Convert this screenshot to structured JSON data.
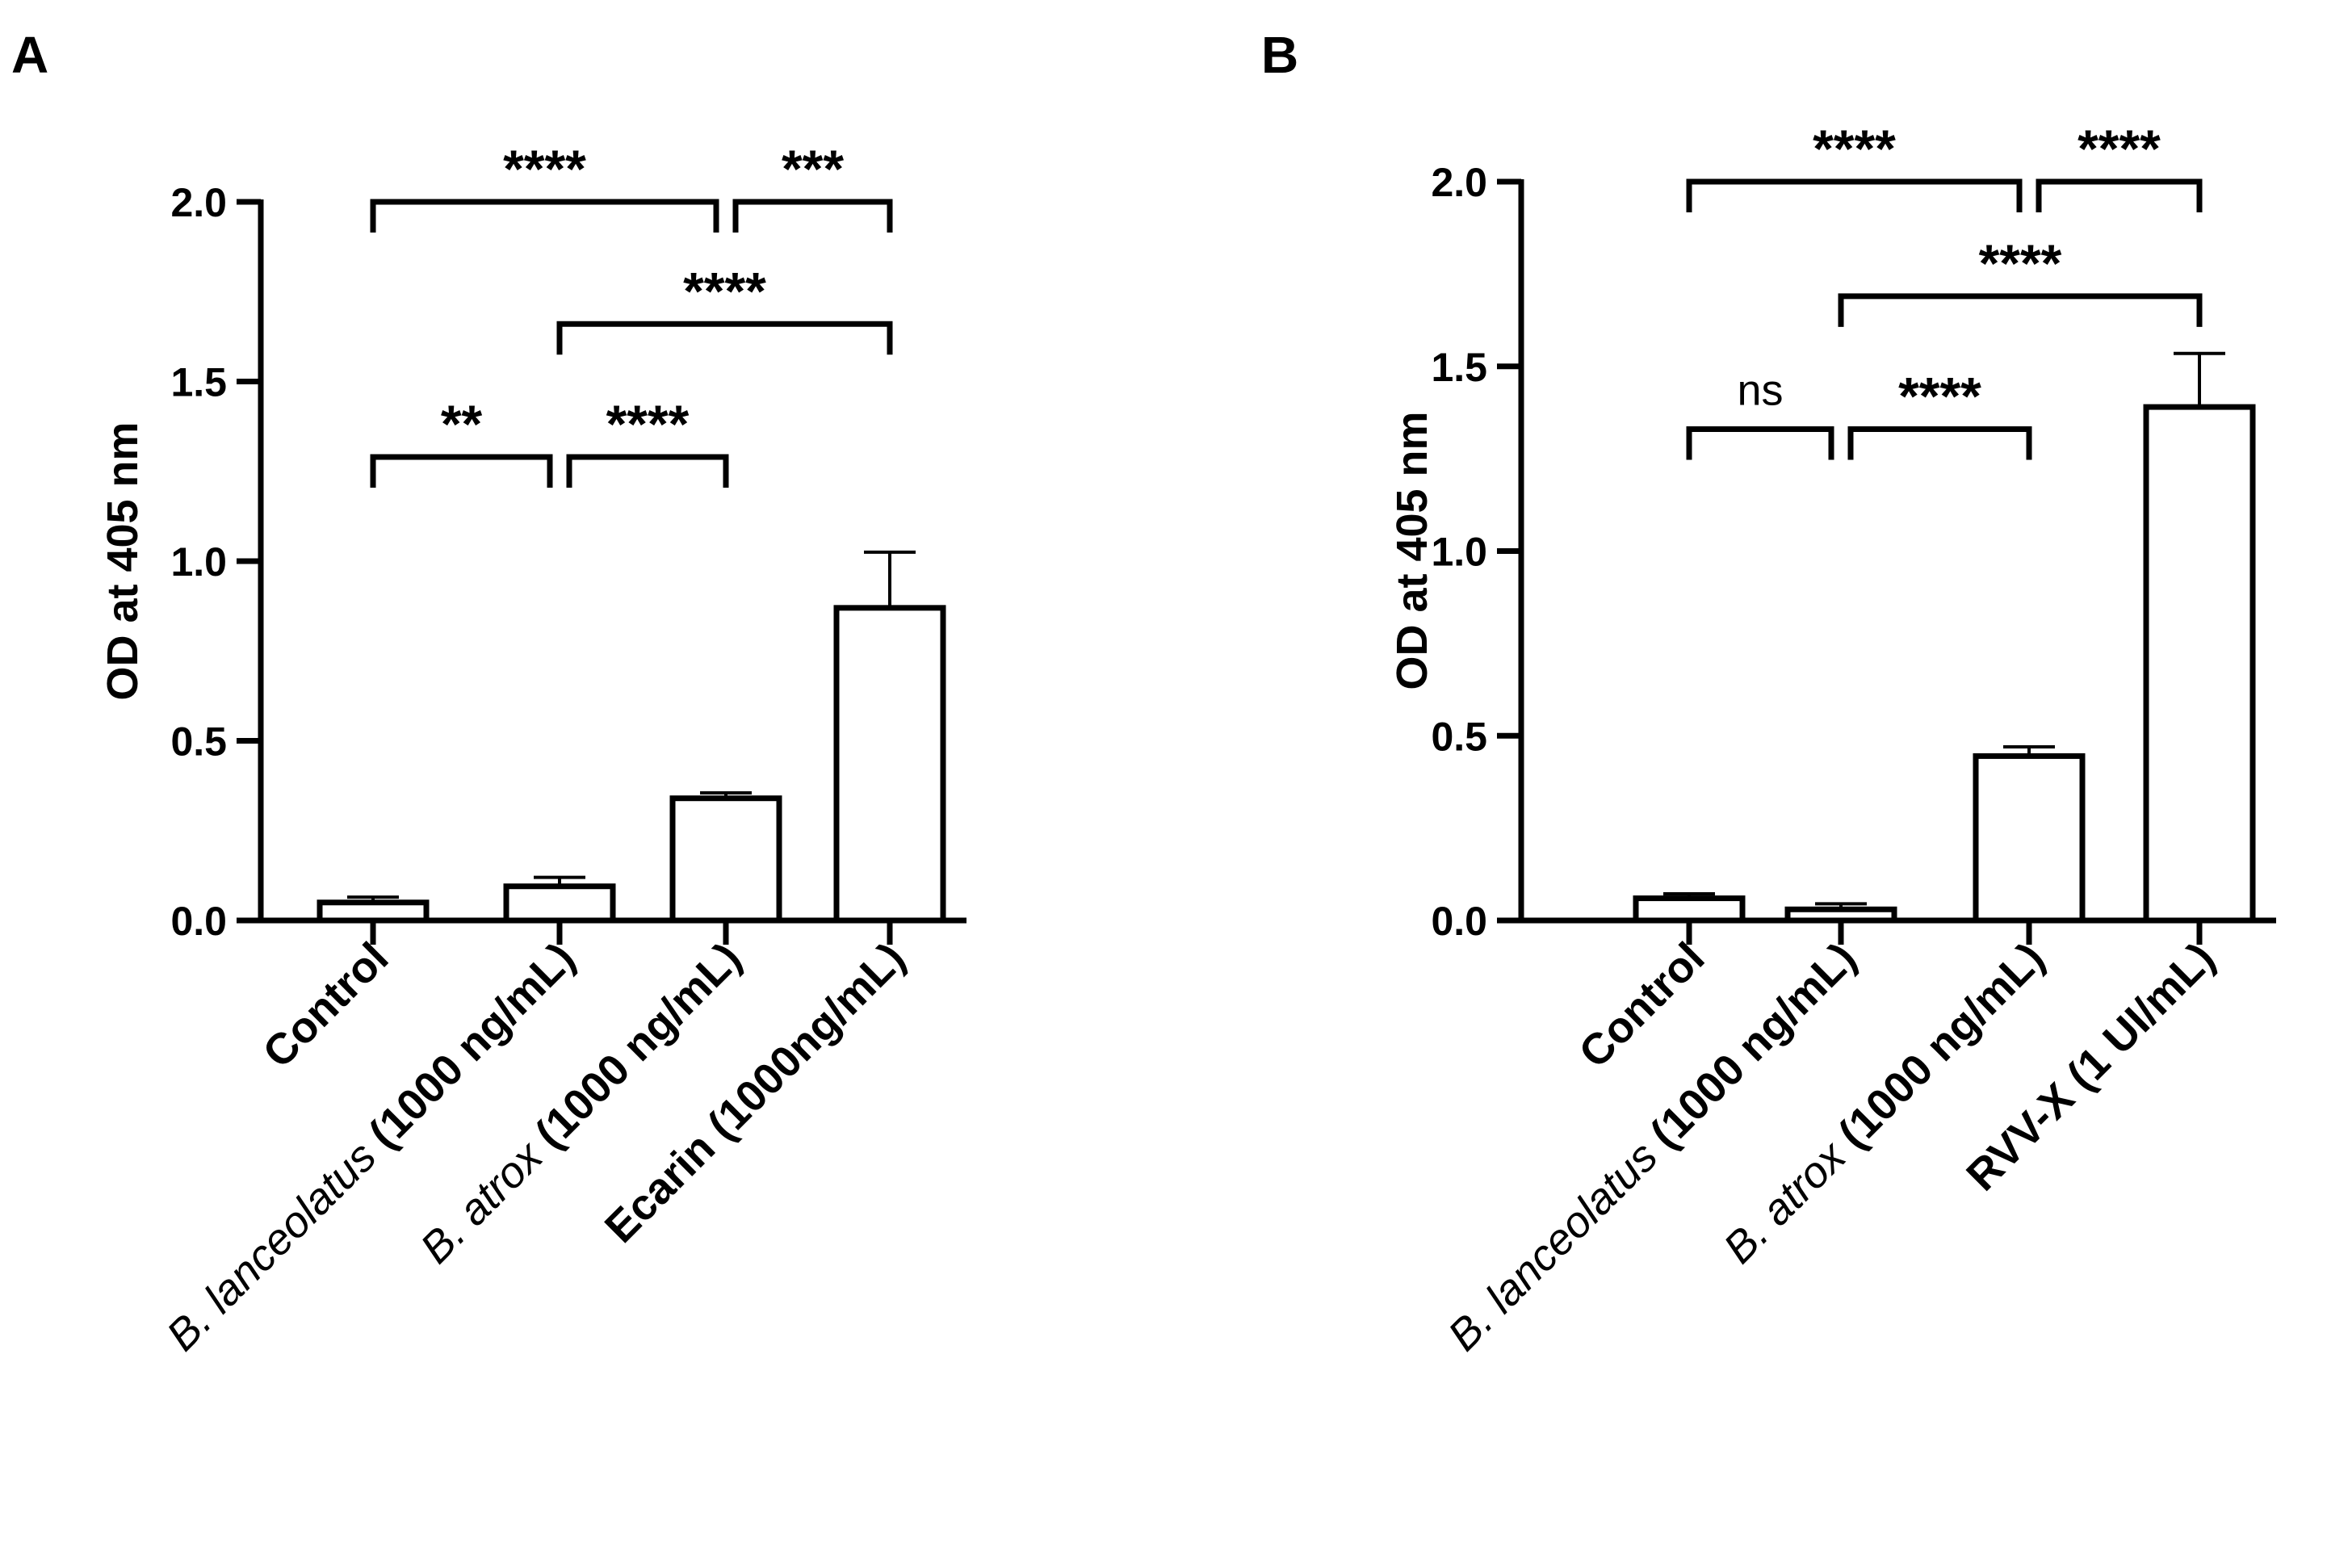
{
  "chart_data": [
    {
      "panel": "A",
      "type": "bar",
      "ylabel": "OD at 405 nm",
      "ylim": [
        0,
        2.0
      ],
      "yticks": [
        0.0,
        0.5,
        1.0,
        1.5,
        2.0
      ],
      "ytick_labels": [
        "0.0",
        "0.5",
        "1.0",
        "1.5",
        "2.0"
      ],
      "categories": [
        {
          "label_italic": "",
          "label_bold": "Control"
        },
        {
          "label_italic": "B. lanceolatus",
          "label_bold": " (1000 ng/mL)"
        },
        {
          "label_italic": "B. atrox",
          "label_bold": " (1000 ng/mL)"
        },
        {
          "label_italic": "",
          "label_bold": "Ecarin (1000ng/mL)"
        }
      ],
      "values": [
        0.05,
        0.095,
        0.34,
        0.87
      ],
      "errors": [
        0.015,
        0.025,
        0.015,
        0.155
      ],
      "significance": [
        {
          "from": 0,
          "to": 2,
          "y": 2.0,
          "label": "****"
        },
        {
          "from": 2,
          "to": 3,
          "y": 2.0,
          "label": "***"
        },
        {
          "from": 1,
          "to": 3,
          "y": 1.66,
          "label": "****"
        },
        {
          "from": 0,
          "to": 1,
          "y": 1.29,
          "label": "**"
        },
        {
          "from": 1,
          "to": 2,
          "y": 1.29,
          "label": "****"
        }
      ]
    },
    {
      "panel": "B",
      "type": "bar",
      "ylabel": "OD at 405 nm",
      "ylim": [
        0,
        2.0
      ],
      "yticks": [
        0.0,
        0.5,
        1.0,
        1.5,
        2.0
      ],
      "ytick_labels": [
        "0.0",
        "0.5",
        "1.0",
        "1.5",
        "2.0"
      ],
      "categories": [
        {
          "label_italic": "",
          "label_bold": "Control"
        },
        {
          "label_italic": "B. lanceolatus",
          "label_bold": " (1000 ng/mL)"
        },
        {
          "label_italic": "B. atrox",
          "label_bold": " (1000 ng/mL)"
        },
        {
          "label_italic": "",
          "label_bold": "RVV-X (1 UI/mL)"
        }
      ],
      "values": [
        0.06,
        0.03,
        0.445,
        1.39
      ],
      "errors": [
        0.012,
        0.015,
        0.025,
        0.145
      ],
      "significance": [
        {
          "from": 0,
          "to": 2,
          "y": 2.0,
          "label": "****"
        },
        {
          "from": 2,
          "to": 3,
          "y": 2.0,
          "label": "****"
        },
        {
          "from": 1,
          "to": 3,
          "y": 1.69,
          "label": "****"
        },
        {
          "from": 0,
          "to": 1,
          "y": 1.33,
          "label": "ns"
        },
        {
          "from": 1,
          "to": 2,
          "y": 1.33,
          "label": "****"
        }
      ]
    }
  ]
}
